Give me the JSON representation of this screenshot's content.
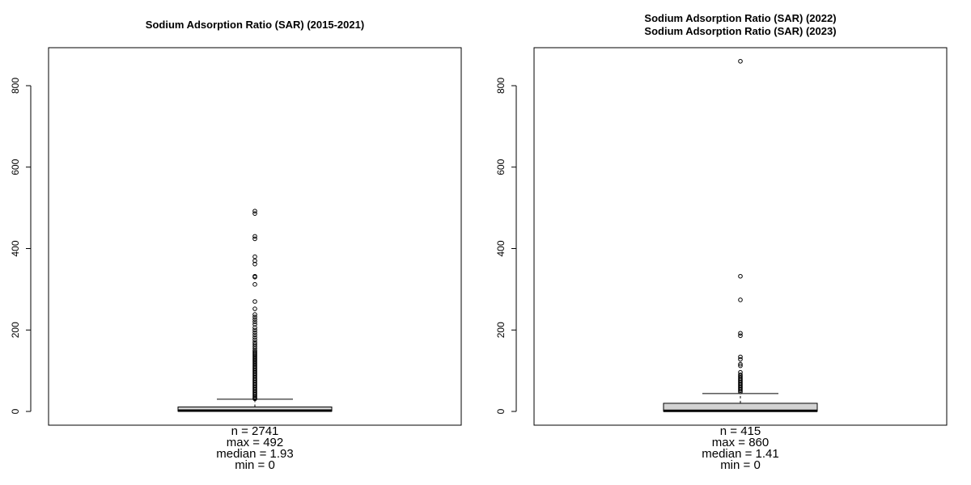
{
  "chart_data": [
    {
      "type": "box",
      "title": "Sodium Adsorption Ratio (SAR) (2015-2021)",
      "ylim": [
        0,
        900
      ],
      "yticks": [
        0,
        200,
        400,
        600,
        800
      ],
      "box": {
        "min": 0,
        "q1": 0.5,
        "median": 1.93,
        "q3": 11,
        "upper_whisker": 30,
        "max": 492,
        "color": "#d3d3d3"
      },
      "outliers": [
        492,
        486,
        430,
        424,
        380,
        370,
        362,
        332,
        330,
        312,
        270,
        252,
        238,
        232,
        226,
        220,
        214,
        206,
        200,
        194,
        188,
        182,
        176,
        170,
        165,
        160,
        155,
        150,
        147,
        144,
        141,
        138,
        135,
        132,
        129,
        126,
        123,
        120,
        117,
        114,
        111,
        108,
        105,
        102,
        99,
        96,
        93,
        90,
        87,
        84,
        81,
        78,
        75,
        72,
        69,
        66,
        63,
        60,
        57,
        54,
        51,
        48,
        45,
        42,
        39,
        36,
        33,
        31
      ],
      "stats": {
        "n": "n = 2741",
        "max": "max = 492",
        "median": "median = 1.93",
        "min": "min = 0"
      }
    },
    {
      "type": "box",
      "title_lines": [
        "Sodium Adsorption Ratio (SAR) (2022)",
        "Sodium Adsorption Ratio (SAR) (2023)"
      ],
      "ylim": [
        0,
        900
      ],
      "yticks": [
        0,
        200,
        400,
        600,
        800
      ],
      "box": {
        "min": 0,
        "q1": 0.3,
        "median": 1.41,
        "q3": 20,
        "upper_whisker": 44,
        "max": 860,
        "color": "#d3d3d3"
      },
      "outliers": [
        860,
        332,
        274,
        192,
        186,
        134,
        128,
        116,
        112,
        96,
        90,
        87,
        84,
        81,
        78,
        75,
        72,
        69,
        66,
        63,
        60,
        57,
        54,
        51,
        48
      ],
      "stats": {
        "n": "n = 415",
        "max": "max = 860",
        "median": "median = 1.41",
        "min": "min = 0"
      }
    }
  ]
}
